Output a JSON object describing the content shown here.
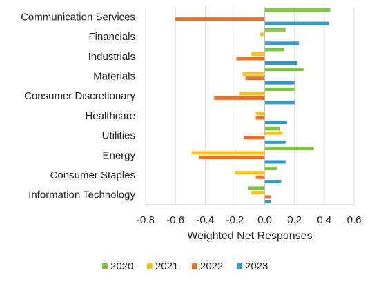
{
  "chart_data": {
    "type": "bar",
    "orientation": "horizontal",
    "categories": [
      "Communication Services",
      "Financials",
      "Industrials",
      "Materials",
      "Consumer Discretionary",
      "Healthcare",
      "Utilities",
      "Energy",
      "Consumer Staples",
      "Information Technology"
    ],
    "series": [
      {
        "name": "2020",
        "color": "#7cc63a",
        "values": [
          0.44,
          0.14,
          0.13,
          0.26,
          0.2,
          0.0,
          0.1,
          0.33,
          0.08,
          -0.11
        ]
      },
      {
        "name": "2021",
        "color": "#ffc20e",
        "values": [
          0.0,
          -0.03,
          -0.09,
          -0.15,
          -0.17,
          -0.06,
          0.12,
          -0.49,
          -0.2,
          -0.09
        ]
      },
      {
        "name": "2022",
        "color": "#f26d21",
        "values": [
          -0.6,
          0.0,
          -0.19,
          -0.13,
          -0.34,
          -0.06,
          -0.14,
          -0.44,
          -0.06,
          0.04
        ]
      },
      {
        "name": "2023",
        "color": "#2a9ad0",
        "values": [
          0.43,
          0.23,
          0.22,
          0.2,
          0.2,
          0.15,
          0.14,
          0.14,
          0.11,
          0.04
        ]
      }
    ],
    "xlabel": "Weighted Net Responses",
    "ylabel": "",
    "xlim": [
      -0.8,
      0.6
    ],
    "xticks": [
      "-0.8",
      "-0.6",
      "-0.4",
      "-0.2",
      "0.0",
      "0.2",
      "0.4",
      "0.6"
    ],
    "grid": "vertical",
    "legend_position": "bottom"
  }
}
